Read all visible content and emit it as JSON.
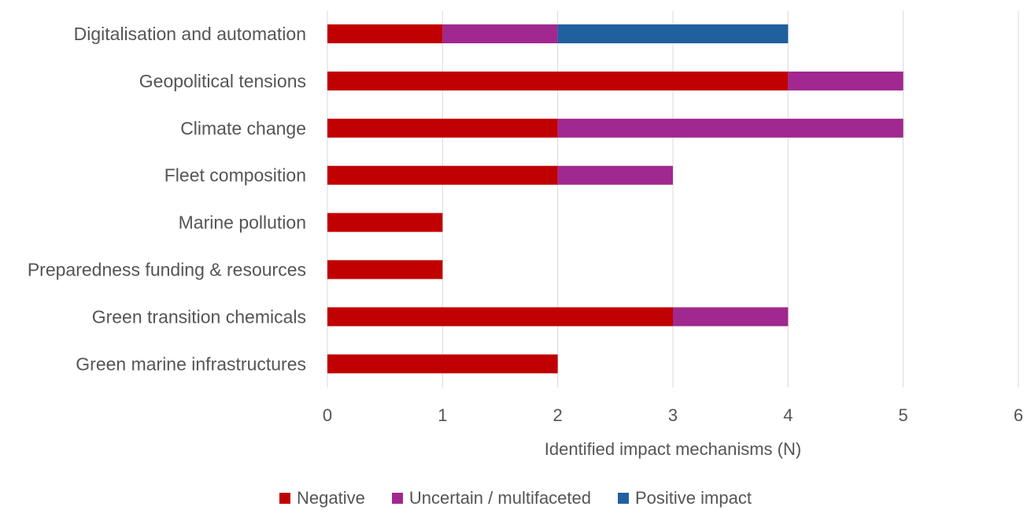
{
  "chart_data": {
    "type": "bar",
    "orientation": "horizontal",
    "stacked": true,
    "categories": [
      "Digitalisation and automation",
      "Geopolitical tensions",
      "Climate change",
      "Fleet composition",
      "Marine pollution",
      "Preparedness funding & resources",
      "Green transition chemicals",
      "Green marine infrastructures"
    ],
    "series": [
      {
        "name": "Negative",
        "color": "#c00000",
        "values": [
          1,
          4,
          2,
          2,
          1,
          1,
          3,
          2
        ]
      },
      {
        "name": "Uncertain / multifaceted",
        "color": "#a0288f",
        "values": [
          1,
          1,
          3,
          1,
          0,
          0,
          1,
          0
        ]
      },
      {
        "name": "Positive impact",
        "color": "#20609e",
        "values": [
          2,
          0,
          0,
          0,
          0,
          0,
          0,
          0
        ]
      }
    ],
    "xlabel": "Identified impact mechanisms (N)",
    "xlim": [
      0,
      6
    ],
    "xticks": [
      "0",
      "1",
      "2",
      "3",
      "4",
      "5",
      "6"
    ],
    "grid": "vertical",
    "legend_position": "bottom"
  }
}
